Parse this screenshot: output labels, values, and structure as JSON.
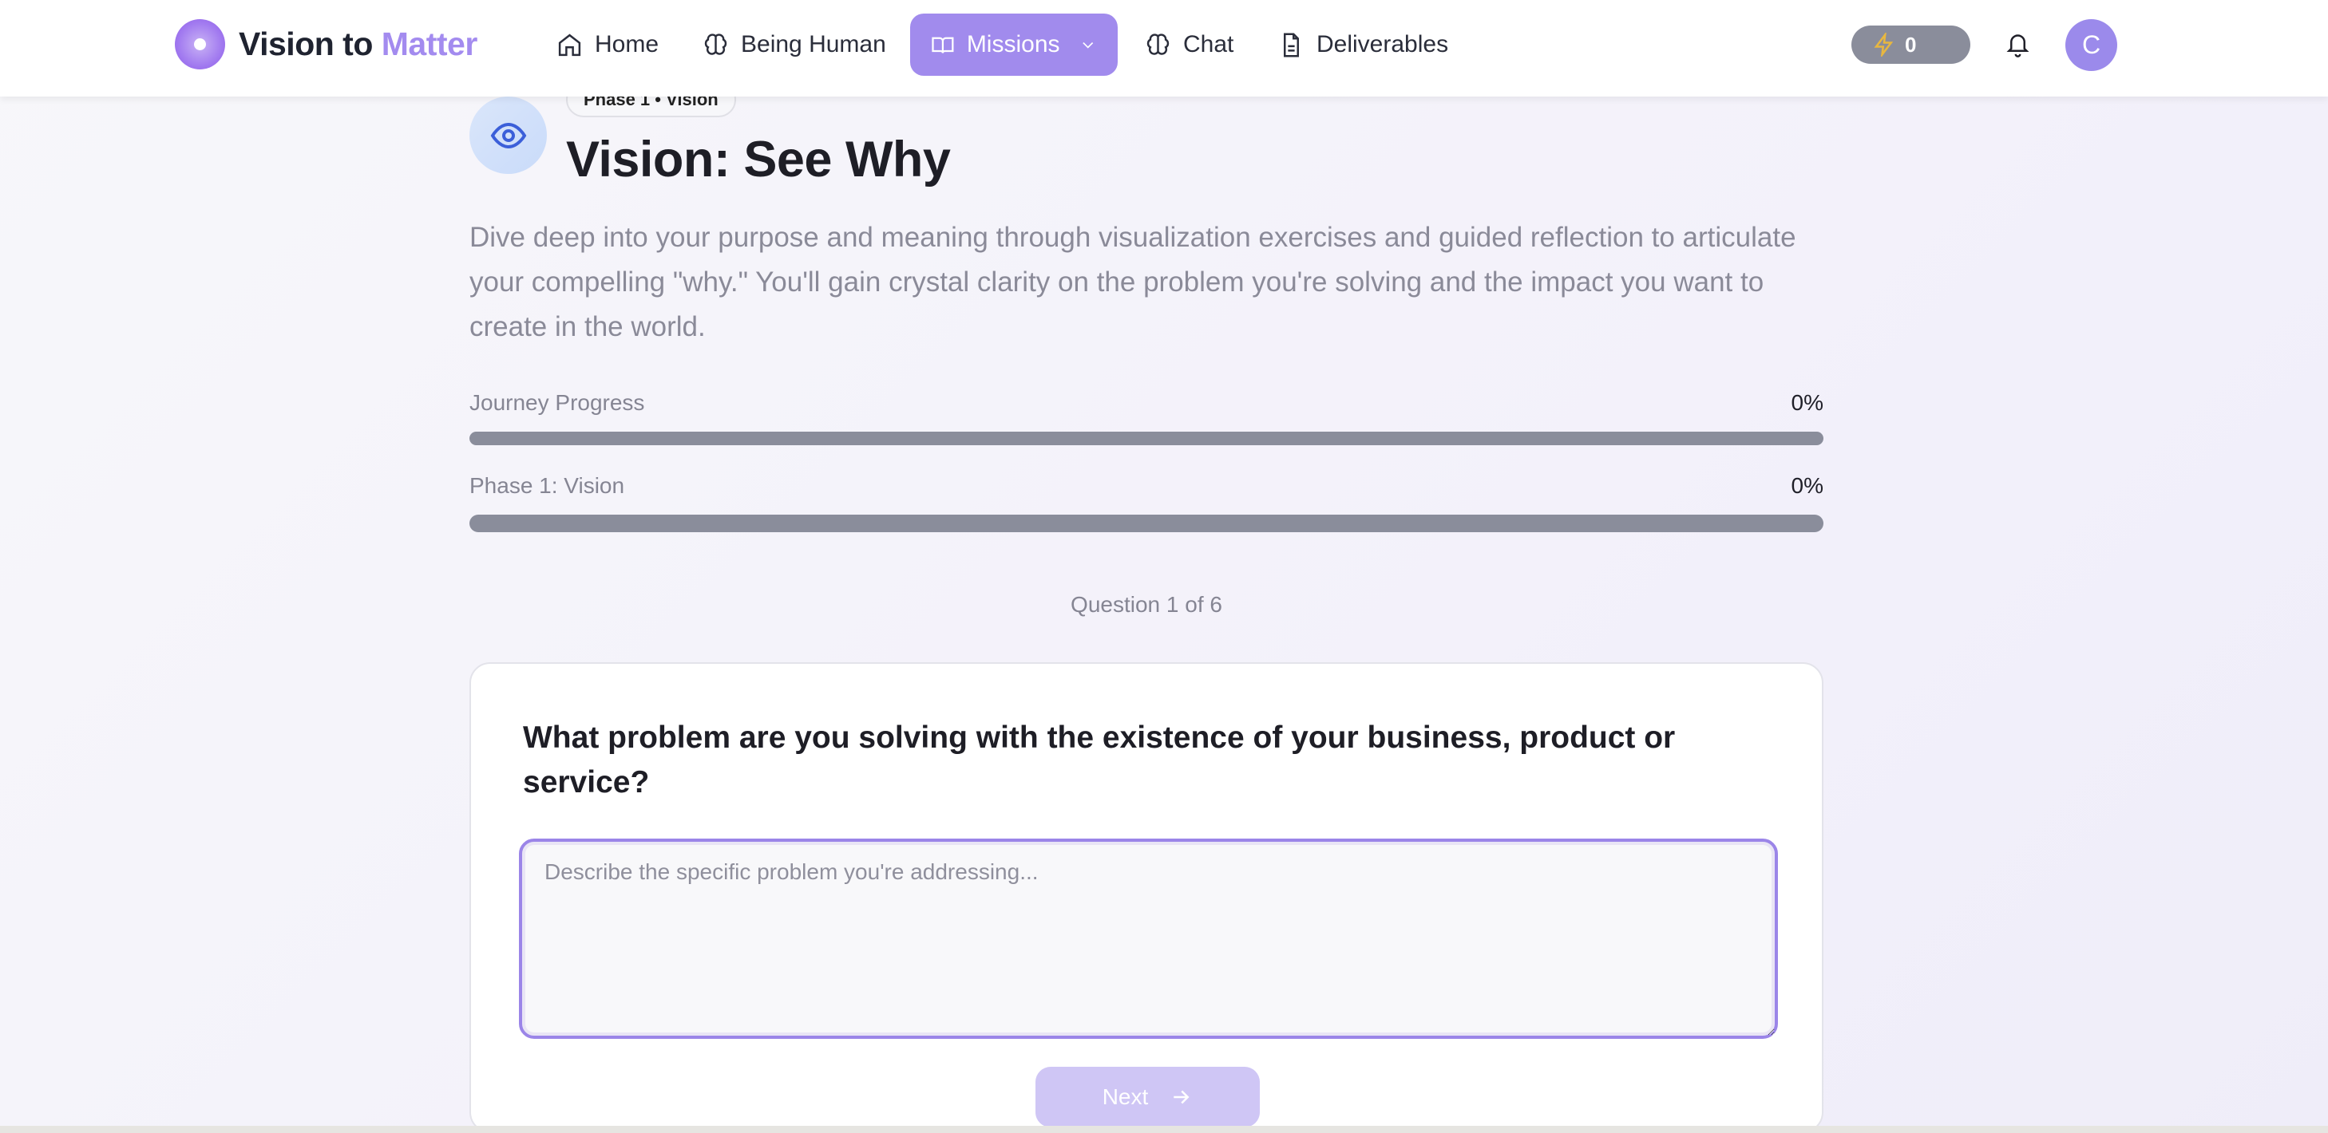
{
  "brand": {
    "name_part1": "Vision to",
    "name_part2": "Matter",
    "accent": "#a38bef"
  },
  "nav": {
    "items": [
      {
        "label": "Home",
        "icon": "home-icon"
      },
      {
        "label": "Being Human",
        "icon": "brain-icon"
      },
      {
        "label": "Missions",
        "icon": "book-open-icon",
        "active": true
      },
      {
        "label": "Chat",
        "icon": "brain-icon"
      },
      {
        "label": "Deliverables",
        "icon": "file-text-icon"
      }
    ]
  },
  "header": {
    "energy_count": "0",
    "avatar_initial": "C"
  },
  "phase": {
    "badge": "Phase 1 • Vision",
    "title": "Vision: See Why",
    "icon": "eye-icon",
    "description": "Dive deep into your purpose and meaning through visualization exercises and guided reflection to articulate your compelling \"why.\" You'll gain crystal clarity on the problem you're solving and the impact you want to create in the world."
  },
  "progress": [
    {
      "label": "Journey Progress",
      "value_text": "0%",
      "value": 0
    },
    {
      "label": "Phase 1: Vision",
      "value_text": "0%",
      "value": 0
    }
  ],
  "question": {
    "counter": "Question 1 of 6",
    "text": "What problem are you solving with the existence of your business, product or service?",
    "placeholder": "Describe the specific problem you're addressing...",
    "value": "",
    "next_label": "Next"
  }
}
